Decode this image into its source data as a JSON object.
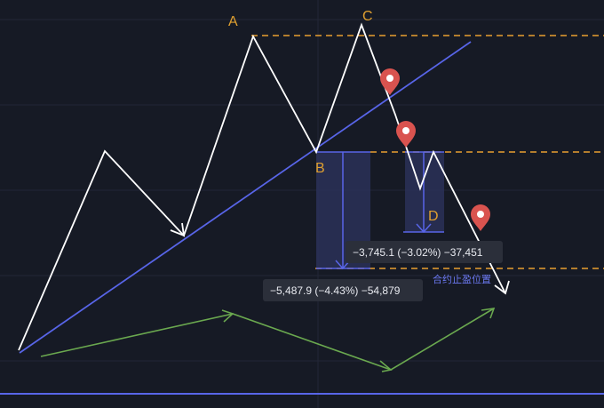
{
  "chart_data": {
    "type": "line",
    "title": "",
    "point_labels": {
      "A": "A",
      "B": "B",
      "C": "C",
      "D": "D"
    },
    "measurements": [
      {
        "name": "measure-1",
        "text": "−5,487.9 (−4.43%) −54,879",
        "change": -5487.9,
        "percent": -4.43,
        "ticks": -54879
      },
      {
        "name": "measure-2",
        "text": "−3,745.1 (−3.02%) −37,451",
        "change": -3745.1,
        "percent": -3.02,
        "ticks": -37451
      }
    ],
    "annotation": "合约止盈位置",
    "colors": {
      "background": "#161a25",
      "price_path": "#ffffff",
      "trendline": "#5865e8",
      "levels": "#e8a030",
      "projection": "#6aa84f",
      "pins": "#d9534f",
      "measure_fill": "#2a3158"
    },
    "icons": [
      "map-pin-icon",
      "map-pin-icon",
      "map-pin-icon"
    ]
  }
}
